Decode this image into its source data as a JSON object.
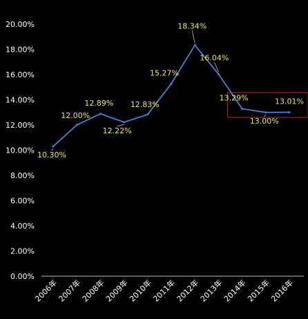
{
  "chart_data": {
    "type": "line",
    "categories": [
      "2006年",
      "2007年",
      "2008年",
      "2009年",
      "2010年",
      "2011年",
      "2012年",
      "2013年",
      "2014年",
      "2015年",
      "2016年"
    ],
    "series": [
      {
        "values": [
          10.3,
          12.0,
          12.89,
          12.22,
          12.83,
          15.27,
          18.34,
          16.04,
          13.29,
          13.0,
          13.01
        ],
        "labels": [
          "10.30%",
          "12.00%",
          "12.89%",
          "12.22%",
          "12.83%",
          "15.27%",
          "18.34%",
          "16.04%",
          "13.29%",
          "13.00%",
          "13.01%"
        ],
        "color": "#4f7fd4"
      }
    ],
    "ylim": [
      0,
      20
    ],
    "yticks": [
      {
        "value": 0,
        "label": "0.00%"
      },
      {
        "value": 2,
        "label": "2.00%"
      },
      {
        "value": 4,
        "label": "4.00%"
      },
      {
        "value": 6,
        "label": "6.00%"
      },
      {
        "value": 8,
        "label": "8.00%"
      },
      {
        "value": 10,
        "label": "10.00%"
      },
      {
        "value": 12,
        "label": "12.00%"
      },
      {
        "value": 14,
        "label": "14.00%"
      },
      {
        "value": 16,
        "label": "16.00%"
      },
      {
        "value": 18,
        "label": "18.00%"
      },
      {
        "value": 20,
        "label": "20.00%"
      }
    ],
    "grid": false,
    "highlight": {
      "from_category": "2014年",
      "to_category": "2016年",
      "color": "#c0272d"
    },
    "colors": {
      "background": "#000000",
      "axis_text": "#ffffff",
      "data_label": "#f2e94e"
    }
  }
}
